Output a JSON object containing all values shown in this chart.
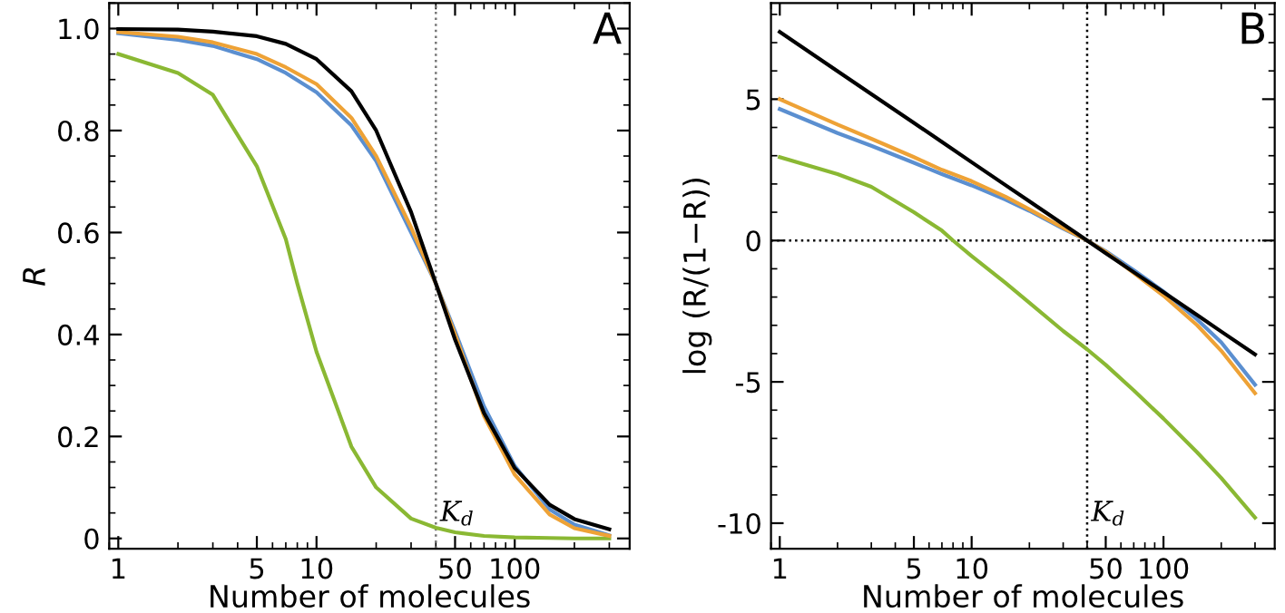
{
  "chart_data": [
    {
      "type": "line",
      "xlabel": "Number of molecules",
      "ylabel": "R",
      "log": "x",
      "xlim": [
        0.9,
        380
      ],
      "xticks": [
        1,
        5,
        10,
        50,
        100
      ],
      "ylim": [
        -0.02,
        1.05
      ],
      "yticks": [
        {
          "value": 0,
          "label": "0"
        },
        {
          "value": 0.2,
          "label": "0.2"
        },
        {
          "value": 0.4,
          "label": "0.4"
        },
        {
          "value": 0.6,
          "label": "0.6"
        },
        {
          "value": 0.8,
          "label": "0.8"
        },
        {
          "value": 1,
          "label": "1.0"
        }
      ],
      "ref_lines": [
        {
          "axis": "x",
          "value": 40,
          "label": "K$_{d}$",
          "color": "#777777",
          "line_style": "dotted"
        }
      ],
      "annotations": [
        "A"
      ],
      "series": [
        {
          "color": "#000000",
          "x": [
            1,
            2,
            3,
            5,
            7,
            10,
            15,
            20,
            30,
            40,
            50,
            70,
            100,
            150,
            200,
            300
          ],
          "values": [
            0.999,
            0.998,
            0.994,
            0.985,
            0.97,
            0.94,
            0.877,
            0.8,
            0.64,
            0.5,
            0.39,
            0.246,
            0.138,
            0.066,
            0.038,
            0.018
          ]
        },
        {
          "color": "#eea236",
          "x": [
            1,
            2,
            3,
            5,
            7,
            10,
            15,
            20,
            30,
            40,
            50,
            70,
            100,
            150,
            200,
            300
          ],
          "values": [
            0.993,
            0.984,
            0.973,
            0.95,
            0.924,
            0.891,
            0.825,
            0.75,
            0.61,
            0.5,
            0.4,
            0.24,
            0.125,
            0.047,
            0.02,
            0.005
          ]
        },
        {
          "color": "#5b8fd0",
          "x": [
            1,
            2,
            3,
            5,
            7,
            10,
            15,
            20,
            30,
            40,
            50,
            70,
            100,
            150,
            200,
            300
          ],
          "values": [
            0.991,
            0.978,
            0.966,
            0.94,
            0.913,
            0.875,
            0.81,
            0.74,
            0.6,
            0.5,
            0.406,
            0.259,
            0.142,
            0.057,
            0.027,
            0.006
          ]
        },
        {
          "color": "#8ab833",
          "x": [
            1,
            2,
            3,
            5,
            7,
            8,
            10,
            15,
            20,
            30,
            40,
            50,
            70,
            100,
            150,
            200,
            300
          ],
          "values": [
            0.95,
            0.913,
            0.87,
            0.73,
            0.587,
            0.5,
            0.366,
            0.18,
            0.1,
            0.039,
            0.021,
            0.012,
            0.005,
            0.002,
            0.001,
            0.0,
            0.0
          ]
        }
      ]
    },
    {
      "type": "line",
      "xlabel": "Number of molecules",
      "ylabel": "log (R/(1−R))",
      "log": "x",
      "xlim": [
        0.9,
        380
      ],
      "xticks": [
        1,
        5,
        10,
        50,
        100
      ],
      "ylim": [
        -10.9,
        8.4
      ],
      "yticks": [
        -10,
        -5,
        0,
        5
      ],
      "ref_lines": [
        {
          "axis": "x",
          "value": 40,
          "label": "K$_{d}$",
          "color": "#000000",
          "line_style": "dotted"
        },
        {
          "axis": "y",
          "value": 0,
          "color": "#000000",
          "line_style": "dotted"
        }
      ],
      "annotations": [
        "B"
      ],
      "series": [
        {
          "color": "#000000",
          "x": [
            1,
            2,
            3,
            5,
            7,
            10,
            15,
            20,
            30,
            40,
            50,
            70,
            100,
            150,
            200,
            300
          ],
          "values": [
            7.38,
            5.99,
            5.18,
            4.16,
            3.49,
            2.77,
            1.96,
            1.39,
            0.58,
            0,
            -0.45,
            -1.12,
            -1.83,
            -2.64,
            -3.22,
            -4.03
          ]
        },
        {
          "color": "#eea236",
          "x": [
            1,
            2,
            3,
            5,
            7,
            10,
            15,
            20,
            30,
            40,
            50,
            70,
            100,
            150,
            200,
            300
          ],
          "values": [
            5.0,
            4.1,
            3.6,
            2.95,
            2.5,
            2.1,
            1.55,
            1.1,
            0.45,
            0,
            -0.4,
            -1.15,
            -1.95,
            -3.0,
            -3.9,
            -5.4
          ]
        },
        {
          "color": "#5b8fd0",
          "x": [
            1,
            2,
            3,
            5,
            7,
            10,
            15,
            20,
            30,
            40,
            50,
            70,
            100,
            150,
            200,
            300
          ],
          "values": [
            4.65,
            3.8,
            3.35,
            2.75,
            2.35,
            1.95,
            1.45,
            1.05,
            0.42,
            0,
            -0.38,
            -1.05,
            -1.8,
            -2.8,
            -3.6,
            -5.1
          ]
        },
        {
          "color": "#8ab833",
          "x": [
            1,
            2,
            3,
            5,
            7,
            8,
            10,
            15,
            20,
            30,
            40,
            50,
            70,
            100,
            150,
            200,
            300
          ],
          "values": [
            2.95,
            2.35,
            1.9,
            1.0,
            0.35,
            0,
            -0.55,
            -1.5,
            -2.2,
            -3.2,
            -3.85,
            -4.4,
            -5.3,
            -6.3,
            -7.5,
            -8.4,
            -9.8
          ]
        }
      ]
    }
  ]
}
